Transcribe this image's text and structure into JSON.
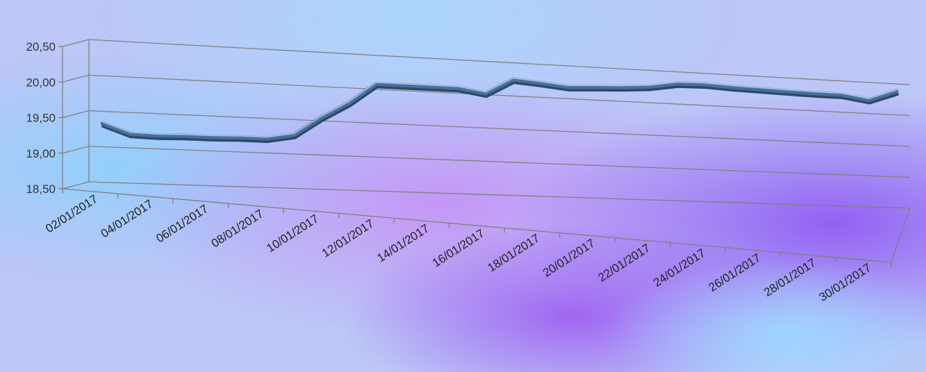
{
  "chart_data": {
    "type": "line",
    "title": "",
    "xlabel": "",
    "ylabel": "",
    "ylim": [
      18.5,
      20.5
    ],
    "y_ticks": [
      "18,50",
      "19,00",
      "19,50",
      "20,00",
      "20,50"
    ],
    "y_tick_values": [
      18.5,
      19.0,
      19.5,
      20.0,
      20.5
    ],
    "x_tick_labels": [
      "02/01/2017",
      "04/01/2017",
      "06/01/2017",
      "08/01/2017",
      "10/01/2017",
      "12/01/2017",
      "14/01/2017",
      "16/01/2017",
      "18/01/2017",
      "20/01/2017",
      "22/01/2017",
      "24/01/2017",
      "26/01/2017",
      "28/01/2017",
      "30/01/2017"
    ],
    "x": [
      "02/01/2017",
      "03/01/2017",
      "04/01/2017",
      "05/01/2017",
      "06/01/2017",
      "07/01/2017",
      "08/01/2017",
      "09/01/2017",
      "10/01/2017",
      "11/01/2017",
      "12/01/2017",
      "13/01/2017",
      "14/01/2017",
      "15/01/2017",
      "16/01/2017",
      "17/01/2017",
      "18/01/2017",
      "19/01/2017",
      "20/01/2017",
      "21/01/2017",
      "22/01/2017",
      "23/01/2017",
      "24/01/2017",
      "25/01/2017",
      "26/01/2017",
      "27/01/2017",
      "28/01/2017",
      "29/01/2017",
      "30/01/2017",
      "31/01/2017"
    ],
    "series": [
      {
        "values": [
          19.33,
          19.2,
          19.19,
          19.2,
          19.2,
          19.21,
          19.21,
          19.28,
          19.55,
          19.78,
          20.08,
          20.08,
          20.08,
          20.08,
          20.02,
          20.25,
          20.22,
          20.18,
          20.2,
          20.22,
          20.25,
          20.32,
          20.33,
          20.31,
          20.3,
          20.29,
          20.28,
          20.28,
          20.22,
          20.38
        ]
      }
    ],
    "grid": true,
    "legend": "none",
    "colors": {
      "line": "#4a6f9a",
      "line_highlight": "#a8c8ee",
      "line_shadow": "#2c4968",
      "grid": "#7f7f7f"
    }
  }
}
